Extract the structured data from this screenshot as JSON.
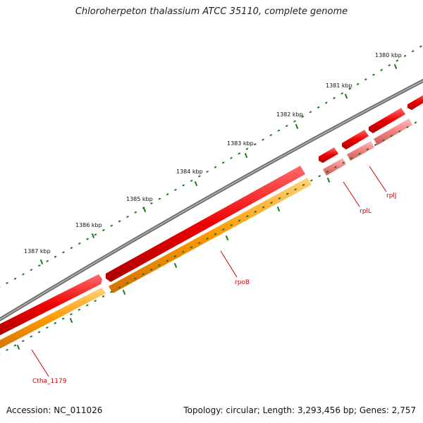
{
  "title": "Chloroherpeton thalassium ATCC 35110, complete genome",
  "footer": {
    "accession": "Accession: NC_011026",
    "topology": "Topology: circular; Length: 3,293,456 bp; Genes: 2,757"
  },
  "scale_labels": [
    "1380 kbp",
    "1381 kbp",
    "1382 kbp",
    "1383 kbp",
    "1384 kbp",
    "1385 kbp",
    "1386 kbp",
    "1387 kbp"
  ],
  "genes": [
    "rplJ",
    "rplL",
    "rpoB",
    "Ctha_1179"
  ],
  "colors": {
    "backbone": "#7a7a7a",
    "cds": "#ee0000",
    "rrna_like": "#f08080",
    "orange_feature": "#ff9900",
    "ticks": "#1a7a1a",
    "gene_label": "#d00000"
  }
}
